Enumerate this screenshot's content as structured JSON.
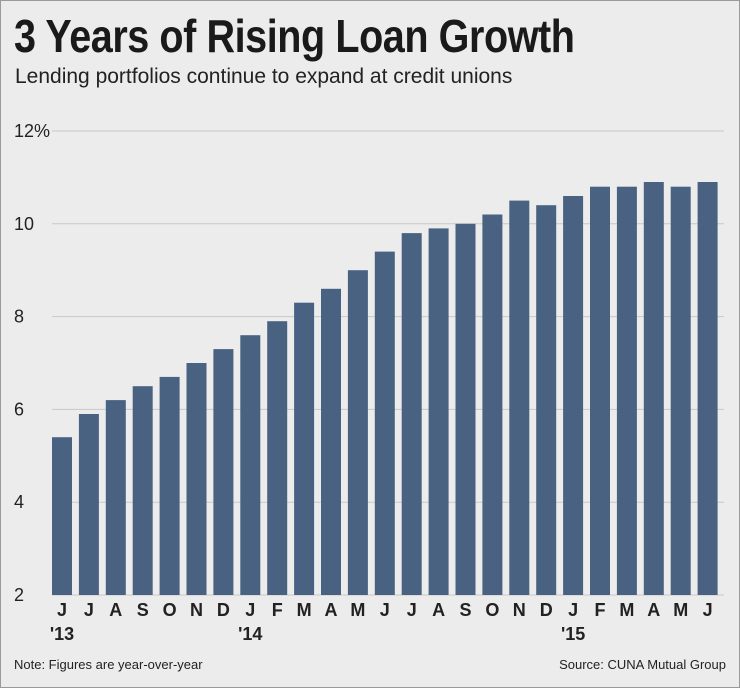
{
  "header": {
    "title": "3 Years of Rising Loan Growth",
    "subtitle": "Lending portfolios continue to expand at credit unions"
  },
  "footer": {
    "note": "Note: Figures are year-over-year",
    "source": "Source: CUNA Mutual Group"
  },
  "colors": {
    "bar": "#4a6282",
    "grid": "#c8c8c8",
    "background": "#ececec"
  },
  "chart_data": {
    "type": "bar",
    "title": "3 Years of Rising Loan Growth",
    "subtitle": "Lending portfolios continue to expand at credit unions",
    "xlabel": "",
    "ylabel": "",
    "ylim": [
      2,
      12
    ],
    "yticks": [
      2,
      4,
      6,
      8,
      10,
      12
    ],
    "ytick_labels": [
      "2",
      "4",
      "6",
      "8",
      "10",
      "12%"
    ],
    "grid": true,
    "legend": "none",
    "categories": [
      "J",
      "J",
      "A",
      "S",
      "O",
      "N",
      "D",
      "J",
      "F",
      "M",
      "A",
      "M",
      "J",
      "J",
      "A",
      "S",
      "O",
      "N",
      "D",
      "J",
      "F",
      "M",
      "A",
      "M",
      "J"
    ],
    "year_markers": [
      {
        "index": 0,
        "label": "'13"
      },
      {
        "index": 7,
        "label": "'14"
      },
      {
        "index": 19,
        "label": "'15"
      }
    ],
    "values": [
      5.4,
      5.9,
      6.2,
      6.5,
      6.7,
      7.0,
      7.3,
      7.6,
      7.9,
      8.3,
      8.6,
      9.0,
      9.4,
      9.8,
      9.9,
      10.0,
      10.2,
      10.5,
      10.4,
      10.6,
      10.8,
      10.8,
      10.9,
      10.8,
      10.9
    ]
  }
}
